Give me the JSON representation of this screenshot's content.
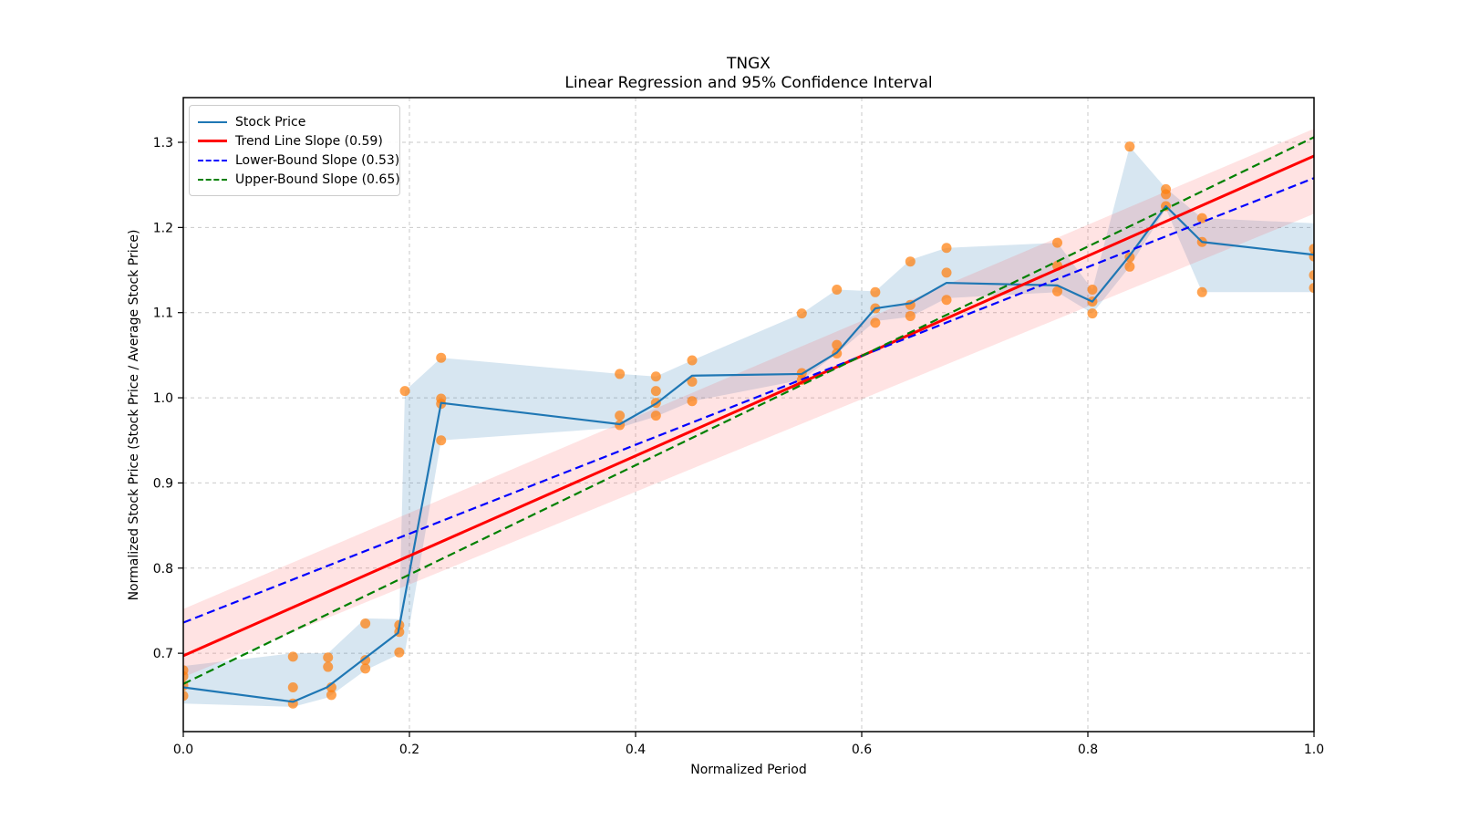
{
  "title": {
    "line1": "TNGX",
    "line2": "Linear Regression and 95% Confidence Interval"
  },
  "chart_data": {
    "type": "line",
    "title": "TNGX",
    "subtitle": "Linear Regression and 95% Confidence Interval",
    "xlabel": "Normalized Period",
    "ylabel": "Normalized Stock Price (Stock Price / Average Stock Price)",
    "xlim": [
      0.0,
      1.0
    ],
    "ylim": [
      0.608,
      1.3525
    ],
    "grid": true,
    "legend_position": "upper-left",
    "xticks": [
      [
        0.0,
        "0.0"
      ],
      [
        0.2,
        "0.2"
      ],
      [
        0.4,
        "0.4"
      ],
      [
        0.6,
        "0.6"
      ],
      [
        0.8,
        "0.8"
      ],
      [
        1.0,
        "1.0"
      ]
    ],
    "yticks": [
      [
        0.7,
        "0.7"
      ],
      [
        0.8,
        "0.8"
      ],
      [
        0.9,
        "0.9"
      ],
      [
        1.0,
        "1.0"
      ],
      [
        1.1,
        "1.1"
      ],
      [
        1.2,
        "1.2"
      ],
      [
        1.3,
        "1.3"
      ]
    ],
    "slopes": {
      "trend": 0.59,
      "lower_bound": 0.53,
      "upper_bound": 0.65
    },
    "legend": [
      {
        "label": "Stock Price",
        "color": "#1f77b4",
        "style": "solid"
      },
      {
        "label": "Trend Line Slope (0.59)",
        "color": "#ff0000",
        "style": "solid"
      },
      {
        "label": "Lower-Bound Slope (0.53)",
        "color": "#0000ff",
        "style": "dashed"
      },
      {
        "label": "Upper-Bound Slope (0.65)",
        "color": "#008000",
        "style": "dashed"
      }
    ],
    "series": [
      {
        "name": "stock-price-range-band",
        "kind": "band",
        "color": "#1f77b4",
        "opacity": 0.18,
        "points": [
          [
            0.0,
            0.641,
            0.685
          ],
          [
            0.097,
            0.637,
            0.7
          ],
          [
            0.128,
            0.648,
            0.7
          ],
          [
            0.161,
            0.68,
            0.741
          ],
          [
            0.191,
            0.699,
            0.74
          ],
          [
            0.196,
            0.701,
            1.008
          ],
          [
            0.228,
            0.95,
            1.047
          ],
          [
            0.386,
            0.965,
            1.028
          ],
          [
            0.418,
            0.978,
            1.025
          ],
          [
            0.45,
            0.996,
            1.044
          ],
          [
            0.547,
            1.021,
            1.099
          ],
          [
            0.578,
            1.052,
            1.127
          ],
          [
            0.612,
            1.09,
            1.125
          ],
          [
            0.643,
            1.095,
            1.162
          ],
          [
            0.675,
            1.117,
            1.176
          ],
          [
            0.773,
            1.124,
            1.182
          ],
          [
            0.804,
            1.099,
            1.127
          ],
          [
            0.837,
            1.154,
            1.295
          ],
          [
            0.869,
            1.222,
            1.246
          ],
          [
            0.901,
            1.124,
            1.211
          ],
          [
            1.0,
            1.124,
            1.205
          ]
        ]
      },
      {
        "name": "confidence-interval-band",
        "kind": "band",
        "color": "#ff4444",
        "opacity": 0.15,
        "points": [
          [
            0.0,
            0.672,
            0.752
          ],
          [
            1.0,
            1.216,
            1.316
          ]
        ]
      },
      {
        "name": "stock-price-points",
        "kind": "scatter",
        "color": "#ff7f0e",
        "opacity": 0.72,
        "radius": 5.5,
        "points": [
          [
            0.0,
            0.68
          ],
          [
            0.0,
            0.673
          ],
          [
            0.0,
            0.662
          ],
          [
            0.0,
            0.65
          ],
          [
            0.097,
            0.696
          ],
          [
            0.097,
            0.66
          ],
          [
            0.097,
            0.641
          ],
          [
            0.128,
            0.695
          ],
          [
            0.128,
            0.684
          ],
          [
            0.131,
            0.66
          ],
          [
            0.131,
            0.651
          ],
          [
            0.161,
            0.735
          ],
          [
            0.161,
            0.692
          ],
          [
            0.161,
            0.682
          ],
          [
            0.191,
            0.733
          ],
          [
            0.191,
            0.725
          ],
          [
            0.191,
            0.701
          ],
          [
            0.196,
            1.008
          ],
          [
            0.228,
            1.047
          ],
          [
            0.228,
            0.999
          ],
          [
            0.228,
            0.993
          ],
          [
            0.228,
            0.95
          ],
          [
            0.386,
            1.028
          ],
          [
            0.386,
            0.979
          ],
          [
            0.386,
            0.968
          ],
          [
            0.418,
            1.025
          ],
          [
            0.418,
            1.008
          ],
          [
            0.418,
            0.994
          ],
          [
            0.418,
            0.979
          ],
          [
            0.45,
            1.044
          ],
          [
            0.45,
            1.019
          ],
          [
            0.45,
            0.996
          ],
          [
            0.547,
            1.099
          ],
          [
            0.547,
            1.029
          ],
          [
            0.547,
            1.021
          ],
          [
            0.578,
            1.127
          ],
          [
            0.578,
            1.062
          ],
          [
            0.578,
            1.052
          ],
          [
            0.612,
            1.124
          ],
          [
            0.612,
            1.105
          ],
          [
            0.612,
            1.088
          ],
          [
            0.643,
            1.16
          ],
          [
            0.643,
            1.109
          ],
          [
            0.643,
            1.096
          ],
          [
            0.675,
            1.176
          ],
          [
            0.675,
            1.147
          ],
          [
            0.675,
            1.115
          ],
          [
            0.773,
            1.182
          ],
          [
            0.773,
            1.155
          ],
          [
            0.773,
            1.125
          ],
          [
            0.804,
            1.127
          ],
          [
            0.804,
            1.113
          ],
          [
            0.804,
            1.099
          ],
          [
            0.837,
            1.295
          ],
          [
            0.837,
            1.165
          ],
          [
            0.837,
            1.154
          ],
          [
            0.869,
            1.245
          ],
          [
            0.869,
            1.239
          ],
          [
            0.869,
            1.225
          ],
          [
            0.901,
            1.211
          ],
          [
            0.901,
            1.183
          ],
          [
            0.901,
            1.124
          ],
          [
            1.0,
            1.175
          ],
          [
            1.0,
            1.166
          ],
          [
            1.0,
            1.144
          ],
          [
            1.0,
            1.129
          ]
        ]
      },
      {
        "name": "stock-price-line",
        "kind": "line",
        "color": "#1f77b4",
        "width": 2.2,
        "points": [
          [
            0.0,
            0.66
          ],
          [
            0.097,
            0.643
          ],
          [
            0.127,
            0.66
          ],
          [
            0.19,
            0.724
          ],
          [
            0.228,
            0.994
          ],
          [
            0.386,
            0.969
          ],
          [
            0.418,
            0.993
          ],
          [
            0.45,
            1.026
          ],
          [
            0.547,
            1.028
          ],
          [
            0.578,
            1.053
          ],
          [
            0.612,
            1.105
          ],
          [
            0.643,
            1.111
          ],
          [
            0.675,
            1.135
          ],
          [
            0.773,
            1.132
          ],
          [
            0.804,
            1.113
          ],
          [
            0.837,
            1.167
          ],
          [
            0.869,
            1.225
          ],
          [
            0.901,
            1.183
          ],
          [
            1.0,
            1.168
          ]
        ]
      },
      {
        "name": "trend-line",
        "kind": "line",
        "color": "#ff0000",
        "width": 3,
        "points": [
          [
            0.0,
            0.697
          ],
          [
            1.0,
            1.284
          ]
        ]
      },
      {
        "name": "lower-bound-line",
        "kind": "line",
        "color": "#0000ff",
        "width": 2.2,
        "dash": "9 5",
        "points": [
          [
            0.0,
            0.736
          ],
          [
            1.0,
            1.258
          ]
        ]
      },
      {
        "name": "upper-bound-line",
        "kind": "line",
        "color": "#008000",
        "width": 2.2,
        "dash": "9 5",
        "points": [
          [
            0.0,
            0.664
          ],
          [
            1.0,
            1.306
          ]
        ]
      }
    ]
  }
}
